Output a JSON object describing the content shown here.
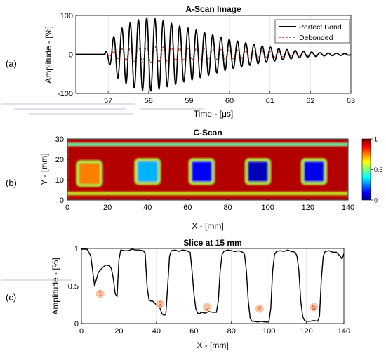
{
  "panel_labels": [
    "(a)",
    "(b)",
    "(c)"
  ],
  "colors": {
    "perfect": "#000000",
    "debonded": "#c0392b",
    "grid": "#d8d8d8"
  },
  "chart_data": [
    {
      "type": "line",
      "title": "A-Scan Image",
      "xlabel": "Time - [μs]",
      "ylabel": "Amplitude - [%]",
      "xlim": [
        56.2,
        63
      ],
      "ylim": [
        -100,
        100
      ],
      "xticks": [
        57,
        58,
        59,
        60,
        61,
        62,
        63
      ],
      "yticks": [
        -100,
        0,
        100
      ],
      "grid": true,
      "legend_position": "top-right",
      "series": [
        {
          "name": "Perfect Bond",
          "style": "solid",
          "color": "#000000",
          "onset": 56.88,
          "frequency_mhz": 4.9,
          "envelope": [
            [
              56.9,
              0
            ],
            [
              57.2,
              58
            ],
            [
              57.6,
              85
            ],
            [
              58.0,
              95
            ],
            [
              58.3,
              88
            ],
            [
              58.8,
              72
            ],
            [
              59.2,
              62
            ],
            [
              59.6,
              50
            ],
            [
              60.0,
              38
            ],
            [
              60.4,
              30
            ],
            [
              60.8,
              22
            ],
            [
              61.3,
              14
            ],
            [
              61.8,
              8
            ],
            [
              62.3,
              4
            ],
            [
              63.0,
              2
            ]
          ]
        },
        {
          "name": "Debonded",
          "style": "dashed",
          "color": "#c0392b",
          "onset": 56.88,
          "frequency_mhz": 4.9,
          "envelope": [
            [
              56.9,
              0
            ],
            [
              57.4,
              16
            ],
            [
              58.0,
              22
            ],
            [
              58.6,
              17
            ],
            [
              59.3,
              14
            ],
            [
              60.0,
              12
            ],
            [
              61.0,
              7
            ],
            [
              62.0,
              4
            ],
            [
              63.0,
              2
            ]
          ]
        }
      ]
    },
    {
      "type": "heatmap",
      "title": "C-Scan",
      "xlabel": "X - [mm]",
      "ylabel": "Y - [mm]",
      "xlim": [
        0,
        140
      ],
      "ylim": [
        0,
        30
      ],
      "xticks": [
        0,
        20,
        40,
        60,
        80,
        100,
        120,
        140
      ],
      "yticks": [
        0,
        10,
        20,
        30
      ],
      "colorbar": {
        "min": 0,
        "max": 1,
        "ticks": [
          0,
          0.5,
          1
        ],
        "colormap": "jet"
      },
      "background_value": 0.95,
      "edge_bands": [
        {
          "y": 3.2,
          "value": 0.58
        },
        {
          "y": 27.3,
          "value": 0.45
        }
      ],
      "defects": [
        {
          "id": "1",
          "x": [
            6,
            16
          ],
          "y": [
            8,
            18
          ],
          "value": 0.75
        },
        {
          "id": "2",
          "x": [
            35,
            45
          ],
          "y": [
            9,
            19
          ],
          "value": 0.3
        },
        {
          "id": "3",
          "x": [
            62,
            72
          ],
          "y": [
            9,
            19
          ],
          "value": 0.12
        },
        {
          "id": "4",
          "x": [
            90,
            100
          ],
          "y": [
            9,
            19
          ],
          "value": 0.05
        },
        {
          "id": "5",
          "x": [
            118,
            128
          ],
          "y": [
            9,
            19
          ],
          "value": 0.1
        }
      ]
    },
    {
      "type": "line",
      "title": "Slice at 15 mm",
      "xlabel": "X - [mm]",
      "ylabel": "Amplitude - [%]",
      "xlim": [
        0,
        140
      ],
      "ylim": [
        0,
        1
      ],
      "xticks": [
        0,
        20,
        40,
        60,
        80,
        100,
        120,
        140
      ],
      "yticks": [
        0,
        0.5,
        1
      ],
      "grid": true,
      "series": [
        {
          "x": [
            0,
            3,
            5,
            7,
            9,
            11,
            13,
            15,
            16,
            17,
            18,
            19,
            20,
            21,
            23,
            25,
            27,
            29,
            31,
            33,
            34,
            35,
            36,
            37,
            38,
            40,
            42,
            43,
            44,
            45,
            46,
            47,
            48,
            50,
            52,
            54,
            56,
            58,
            59,
            60,
            61,
            62,
            63,
            64,
            66,
            68,
            70,
            72,
            73,
            74,
            75,
            76,
            77,
            78,
            80,
            82,
            84,
            86,
            87,
            88,
            89,
            90,
            91,
            92,
            94,
            96,
            98,
            100,
            101,
            102,
            103,
            104,
            106,
            108,
            110,
            112,
            114,
            115,
            116,
            117,
            118,
            119,
            120,
            122,
            124,
            126,
            127,
            128,
            129,
            130,
            132,
            134,
            136,
            138,
            139,
            140
          ],
          "y": [
            0.99,
            0.99,
            0.9,
            0.5,
            0.68,
            0.74,
            0.78,
            0.77,
            0.73,
            0.6,
            0.4,
            0.36,
            0.85,
            0.98,
            0.97,
            0.97,
            0.99,
            0.98,
            0.98,
            0.97,
            0.93,
            0.5,
            0.32,
            0.3,
            0.3,
            0.25,
            0.2,
            0.13,
            0.11,
            0.12,
            0.5,
            0.9,
            0.97,
            0.98,
            0.96,
            0.98,
            0.97,
            0.95,
            0.7,
            0.4,
            0.2,
            0.14,
            0.13,
            0.15,
            0.14,
            0.16,
            0.15,
            0.15,
            0.3,
            0.7,
            0.92,
            0.96,
            0.97,
            0.98,
            0.97,
            0.96,
            0.97,
            0.95,
            0.92,
            0.7,
            0.3,
            0.07,
            0.03,
            0.03,
            0.02,
            0.03,
            0.02,
            0.02,
            0.2,
            0.7,
            0.92,
            0.96,
            0.97,
            0.96,
            0.98,
            0.96,
            0.95,
            0.9,
            0.7,
            0.3,
            0.1,
            0.04,
            0.03,
            0.03,
            0.04,
            0.03,
            0.1,
            0.6,
            0.9,
            0.96,
            0.97,
            0.95,
            0.95,
            0.9,
            0.86,
            0.93
          ]
        }
      ],
      "annotations": [
        {
          "text": "1",
          "x": 10,
          "y": 0.4
        },
        {
          "text": "2",
          "x": 42,
          "y": 0.26
        },
        {
          "text": "3",
          "x": 67,
          "y": 0.22
        },
        {
          "text": "4",
          "x": 95,
          "y": 0.2
        },
        {
          "text": "5",
          "x": 124,
          "y": 0.22
        }
      ]
    }
  ]
}
